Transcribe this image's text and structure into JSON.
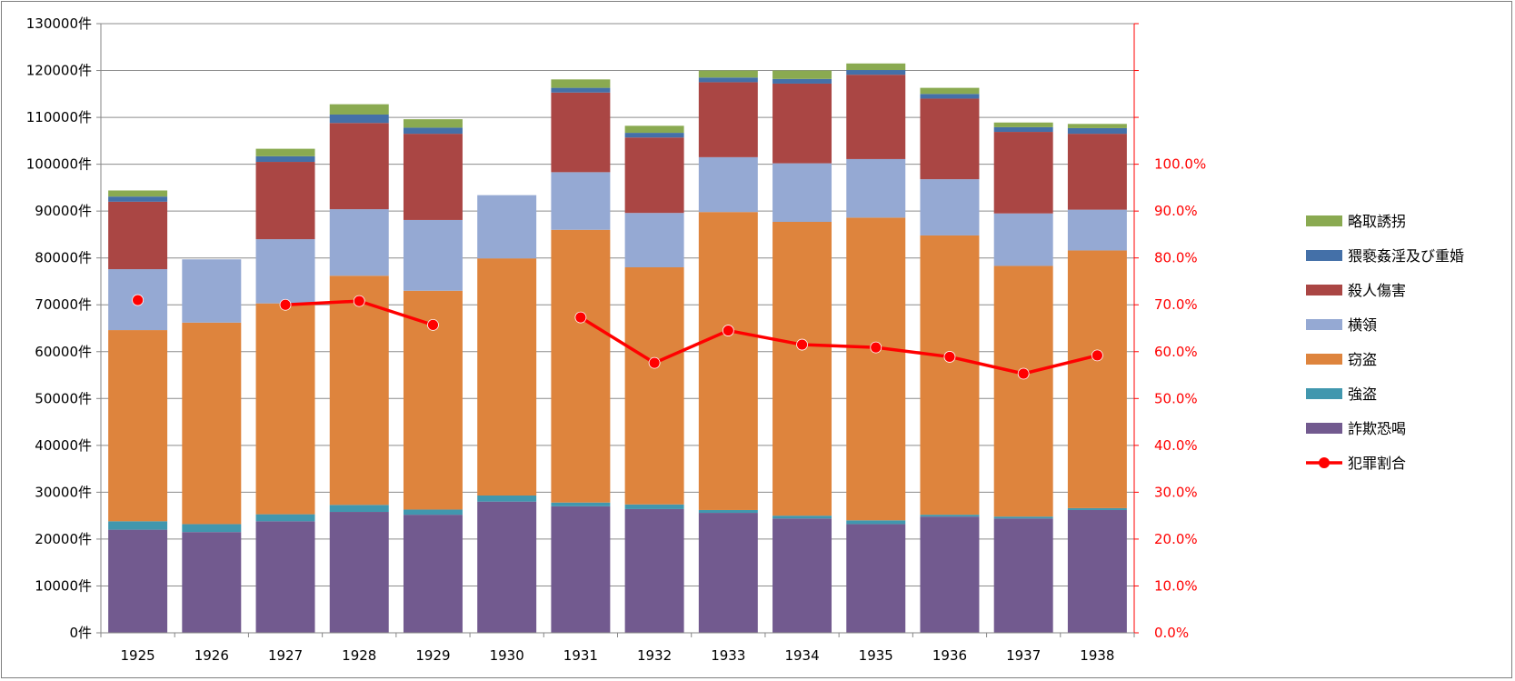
{
  "chart_data": {
    "type": "bar",
    "stacked": true,
    "categories": [
      "1925",
      "1926",
      "1927",
      "1928",
      "1929",
      "1930",
      "1931",
      "1932",
      "1933",
      "1934",
      "1935",
      "1936",
      "1937",
      "1938"
    ],
    "left_axis": {
      "min": 0,
      "max": 130000,
      "step": 10000,
      "ticks": [
        "0件",
        "10000件",
        "20000件",
        "30000件",
        "40000件",
        "50000件",
        "60000件",
        "70000件",
        "80000件",
        "90000件",
        "100000件",
        "110000件",
        "120000件",
        "130000件"
      ]
    },
    "right_axis": {
      "min": 0,
      "max": 130,
      "visible_max": 100,
      "step": 10,
      "unit": "%",
      "ticks": [
        "0.0%",
        "10.0%",
        "20.0%",
        "30.0%",
        "40.0%",
        "50.0%",
        "60.0%",
        "70.0%",
        "80.0%",
        "90.0%",
        "100.0%"
      ],
      "color": "#ff0000"
    },
    "grid": true,
    "legend_position": "right",
    "series": [
      {
        "name": "詐欺恐喝",
        "color": "#725a8f",
        "values": [
          22000,
          21500,
          23800,
          25800,
          25200,
          28000,
          27000,
          26400,
          25600,
          24400,
          23200,
          24800,
          24400,
          26200
        ]
      },
      {
        "name": "強盗",
        "color": "#4197ae",
        "values": [
          1800,
          1700,
          1500,
          1500,
          1100,
          1300,
          800,
          1000,
          600,
          600,
          800,
          400,
          400,
          400
        ]
      },
      {
        "name": "窃盗",
        "color": "#de843d",
        "values": [
          40800,
          43000,
          45000,
          48900,
          46700,
          50600,
          58200,
          50600,
          63600,
          62700,
          64600,
          59600,
          53500,
          55000
        ]
      },
      {
        "name": "横領",
        "color": "#95a9d3",
        "values": [
          13000,
          13500,
          13700,
          14200,
          15100,
          13500,
          12300,
          11600,
          11700,
          12500,
          12500,
          12000,
          11200,
          8700
        ]
      },
      {
        "name": "殺人傷害",
        "color": "#aa4644",
        "values": [
          14400,
          0,
          16500,
          18400,
          18400,
          0,
          17000,
          16100,
          16000,
          17000,
          18000,
          17200,
          17400,
          16200
        ]
      },
      {
        "name": "猥褻姦淫及び重婚",
        "color": "#4470a8",
        "values": [
          1100,
          0,
          1200,
          1800,
          1300,
          0,
          1000,
          1000,
          1000,
          1000,
          1000,
          1000,
          1000,
          1200
        ]
      },
      {
        "name": "略取誘拐",
        "color": "#8aaa51",
        "values": [
          1300,
          0,
          1600,
          2200,
          1800,
          0,
          1800,
          1500,
          1500,
          1800,
          1400,
          1300,
          1000,
          900
        ]
      }
    ],
    "line_series": {
      "name": "犯罪割合",
      "color": "#ff0000",
      "axis": "right",
      "values": [
        71.0,
        null,
        70.0,
        70.8,
        65.7,
        null,
        67.3,
        57.6,
        64.5,
        61.5,
        60.9,
        58.9,
        55.3,
        59.2
      ]
    }
  }
}
